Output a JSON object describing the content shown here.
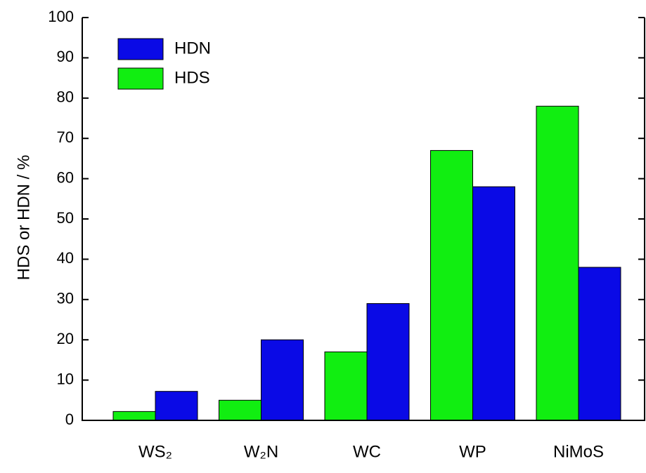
{
  "chart_data": {
    "type": "bar",
    "y_label": "HDS or HDN / %",
    "categories": [
      "WS₂",
      "W₂N",
      "WC",
      "WP",
      "NiMoS"
    ],
    "series": [
      {
        "name": "HDN",
        "color": "#0a0ae6",
        "values": [
          7.2,
          20,
          29,
          58,
          38
        ]
      },
      {
        "name": "HDS",
        "color": "#11ee11",
        "values": [
          2.2,
          5,
          17,
          67,
          78
        ]
      }
    ],
    "ylim": [
      0,
      100
    ],
    "yticks": [
      0,
      10,
      20,
      30,
      40,
      50,
      60,
      70,
      80,
      90,
      100
    ],
    "legend": "upper-left"
  }
}
